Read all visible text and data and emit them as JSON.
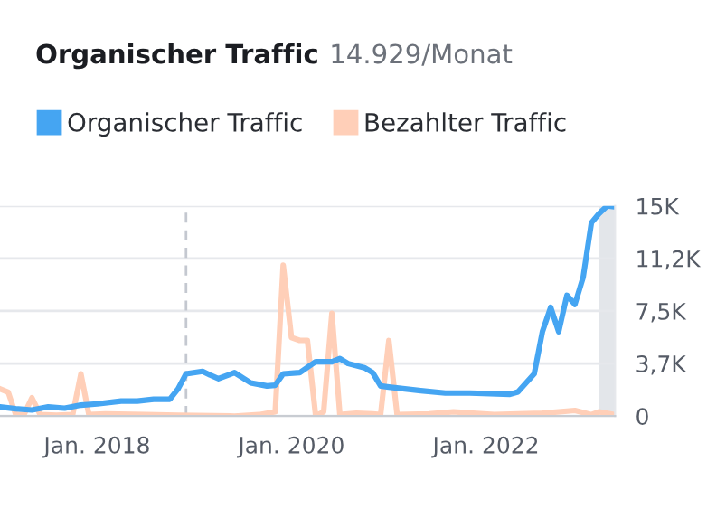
{
  "chart_data": {
    "type": "line",
    "title": "Organischer Traffic",
    "subtitle": "14.929/Monat",
    "xlim": [
      "2017-01",
      "2023-05"
    ],
    "xticks": [
      {
        "value": "2018-01",
        "label": "Jan. 2018"
      },
      {
        "value": "2020-01",
        "label": "Jan. 2020"
      },
      {
        "value": "2022-01",
        "label": "Jan. 2022"
      }
    ],
    "ylim": [
      0,
      15000
    ],
    "yticks": [
      0,
      {
        "value": 3750,
        "label": "3,7K"
      },
      {
        "value": 7500,
        "label": "7,5K"
      },
      {
        "value": 11250,
        "label": "11,2K"
      },
      {
        "value": 15000,
        "label": "15K"
      }
    ],
    "grid": "y",
    "legend": "top left",
    "marker": "none",
    "line_style": "solid",
    "ref_lines": [
      {
        "axis": "x",
        "value": "2018-12",
        "color": "#c4c8d0",
        "line_style": "dashed"
      }
    ],
    "bands": [
      {
        "axis": "x",
        "from": "2023-03",
        "to": "2023-05",
        "color": "#e3e6ea"
      }
    ],
    "series": [
      {
        "name": "Bezahlter Traffic",
        "color": "#ffcfb8",
        "x": [
          "2017-01",
          "2017-02",
          "2017-03",
          "2017-04",
          "2017-05",
          "2017-06",
          "2017-08",
          "2017-10",
          "2017-11",
          "2017-12",
          "2018-02",
          "2018-07",
          "2018-11",
          "2019-06",
          "2019-09",
          "2019-11",
          "2019-12",
          "2020-01",
          "2020-02",
          "2020-03",
          "2020-04",
          "2020-05",
          "2020-06",
          "2020-07",
          "2020-09",
          "2020-11",
          "2020-12",
          "2021-01",
          "2021-02",
          "2021-06",
          "2021-09",
          "2022-02",
          "2022-08",
          "2022-12",
          "2023-02",
          "2023-03",
          "2023-05"
        ],
        "values": [
          1940,
          1700,
          100,
          100,
          1300,
          100,
          50,
          100,
          3010,
          100,
          150,
          100,
          50,
          0,
          100,
          300,
          10770,
          5600,
          5400,
          5400,
          0,
          300,
          7330,
          100,
          200,
          150,
          100,
          5390,
          100,
          150,
          300,
          100,
          200,
          400,
          100,
          300,
          100
        ]
      },
      {
        "name": "Organischer Traffic",
        "color": "#45a5f2",
        "x": [
          "2017-01",
          "2017-03",
          "2017-05",
          "2017-07",
          "2017-09",
          "2017-11",
          "2018-01",
          "2018-04",
          "2018-06",
          "2018-08",
          "2018-10",
          "2018-11",
          "2018-12",
          "2019-02",
          "2019-03",
          "2019-04",
          "2019-06",
          "2019-08",
          "2019-10",
          "2019-11",
          "2019-12",
          "2020-02",
          "2020-04",
          "2020-06",
          "2020-07",
          "2020-08",
          "2020-10",
          "2020-11",
          "2020-12",
          "2021-01",
          "2021-05",
          "2021-08",
          "2021-11",
          "2022-04",
          "2022-05",
          "2022-07",
          "2022-08",
          "2022-09",
          "2022-10",
          "2022-11",
          "2022-12",
          "2023-01",
          "2023-02",
          "2023-03",
          "2023-04",
          "2023-05"
        ],
        "values": [
          650,
          520,
          430,
          650,
          560,
          780,
          870,
          1070,
          1070,
          1200,
          1200,
          1940,
          3010,
          3190,
          2930,
          2670,
          3100,
          2370,
          2150,
          2200,
          3010,
          3100,
          3880,
          3880,
          4100,
          3750,
          3450,
          3100,
          2150,
          2070,
          1810,
          1640,
          1640,
          1550,
          1720,
          3010,
          6030,
          7760,
          6030,
          8620,
          7970,
          9910,
          13800,
          14440,
          15000,
          14929
        ]
      }
    ]
  }
}
